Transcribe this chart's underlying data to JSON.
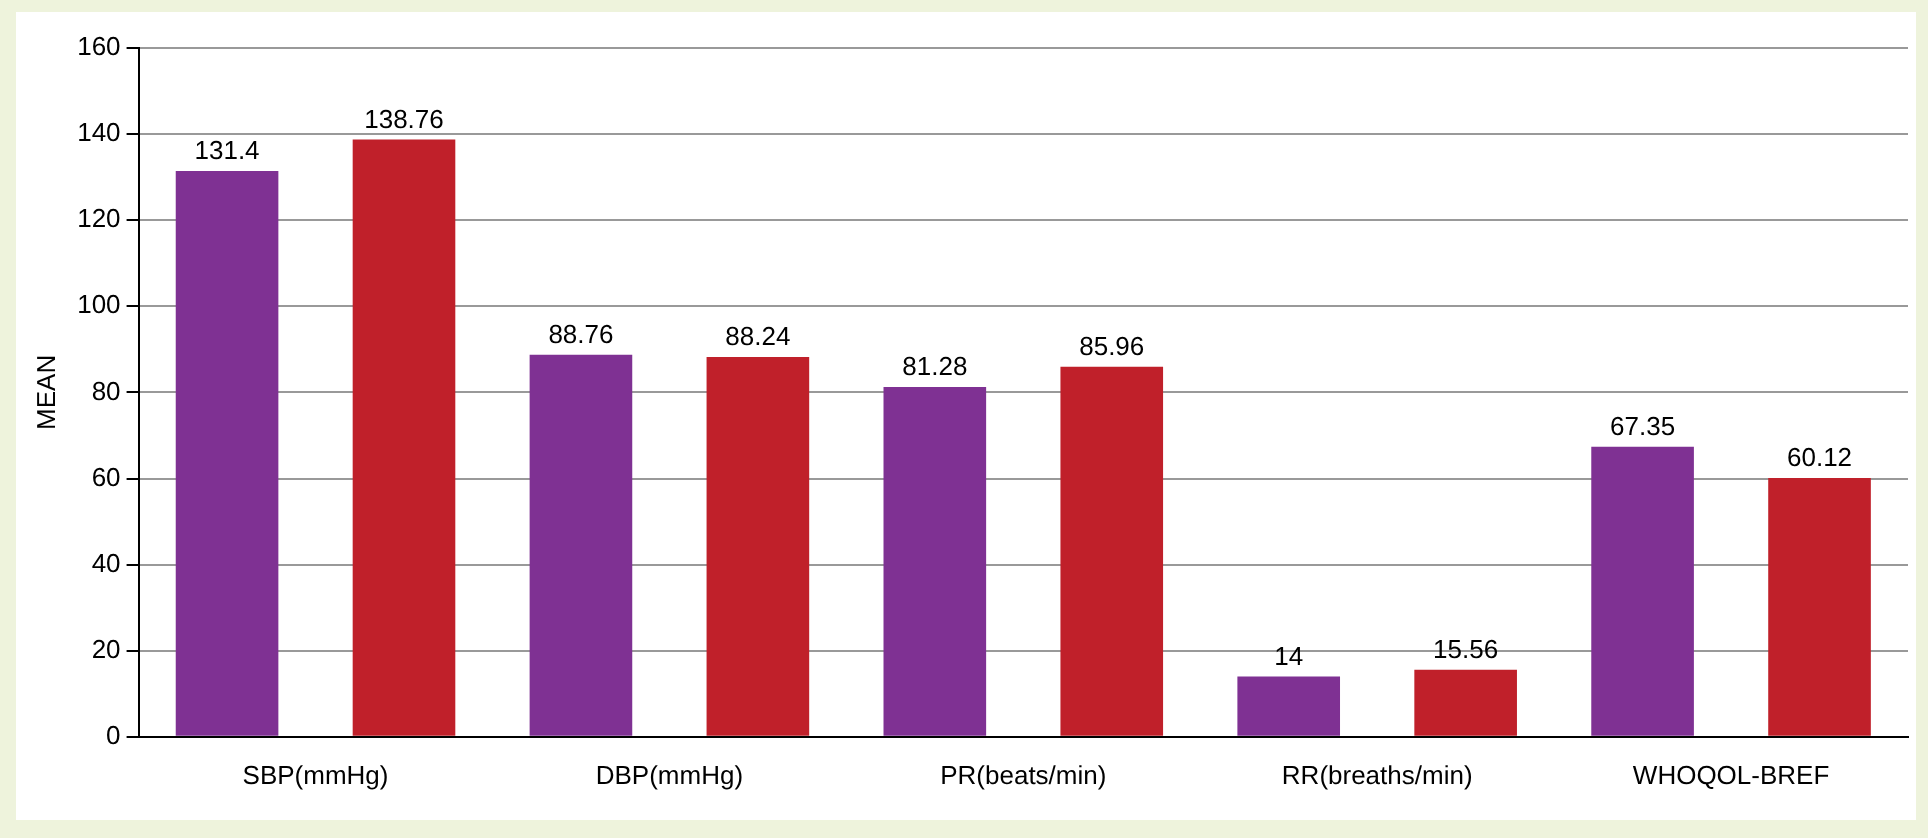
{
  "chart_data": {
    "type": "bar",
    "ylabel": "MEAN",
    "categories": [
      "SBP(mmHg)",
      "DBP(mmHg)",
      "PR(beats/min)",
      "RR(breaths/min)",
      "WHOQOL-BREF"
    ],
    "series": [
      {
        "color": "#7f3193",
        "values": [
          131.4,
          88.76,
          81.28,
          14,
          67.35
        ]
      },
      {
        "color": "#c0202a",
        "values": [
          138.76,
          88.24,
          85.96,
          15.56,
          60.12
        ]
      }
    ],
    "ylim": [
      0,
      160
    ],
    "yticks": [
      0,
      20,
      40,
      60,
      80,
      100,
      120,
      140,
      160
    ],
    "grid": "y",
    "data_labels": true
  }
}
